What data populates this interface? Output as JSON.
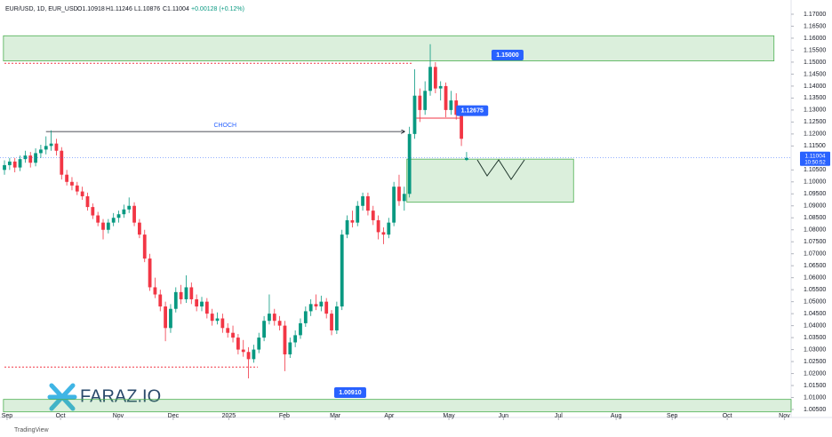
{
  "header": {
    "symbol": "EUR/USD, 1D, EUR_USD",
    "open": "O1.10918",
    "high": "H1.11246",
    "low": "L1.10876",
    "close": "C1.11004",
    "change": "+0.00128 (+0.12%)"
  },
  "logo": "FARAZ.IO",
  "footer": "TradingView",
  "chart_data": {
    "type": "candlestick",
    "colors": {
      "up": "#089981",
      "down": "#f23645"
    },
    "xlim": [
      -0.86,
      151.5
    ],
    "xticks": [
      {
        "value": 0.5,
        "label": "Sep"
      },
      {
        "value": 10.8,
        "label": "Oct"
      },
      {
        "value": 21.9,
        "label": "Nov"
      },
      {
        "value": 32.5,
        "label": "Dec"
      },
      {
        "value": 43.2,
        "label": "2025"
      },
      {
        "value": 53.9,
        "label": "Feb"
      },
      {
        "value": 63.7,
        "label": "Mar"
      },
      {
        "value": 74.1,
        "label": "Apr"
      },
      {
        "value": 85.6,
        "label": "May"
      },
      {
        "value": 96.1,
        "label": "Jun"
      },
      {
        "value": 106.7,
        "label": "Jul"
      },
      {
        "value": 117.8,
        "label": "Aug"
      },
      {
        "value": 128.6,
        "label": "Sep"
      },
      {
        "value": 139.2,
        "label": "Oct"
      },
      {
        "value": 150.2,
        "label": "Nov"
      }
    ],
    "ylim": [
      1.005,
      1.17
    ],
    "yticks": [
      {
        "value": 1.17,
        "label": "1.17000"
      },
      {
        "value": 1.165,
        "label": "1.16500"
      },
      {
        "value": 1.16,
        "label": "1.16000"
      },
      {
        "value": 1.155,
        "label": "1.15500"
      },
      {
        "value": 1.15,
        "label": "1.15000"
      },
      {
        "value": 1.145,
        "label": "1.14500"
      },
      {
        "value": 1.14,
        "label": "1.14000"
      },
      {
        "value": 1.135,
        "label": "1.13500"
      },
      {
        "value": 1.13,
        "label": "1.13000"
      },
      {
        "value": 1.125,
        "label": "1.12500"
      },
      {
        "value": 1.12,
        "label": "1.12000"
      },
      {
        "value": 1.115,
        "label": "1.11500"
      },
      {
        "value": 1.105,
        "label": "1.10500"
      },
      {
        "value": 1.1,
        "label": "1.10000"
      },
      {
        "value": 1.095,
        "label": "1.09500"
      },
      {
        "value": 1.09,
        "label": "1.09000"
      },
      {
        "value": 1.085,
        "label": "1.08500"
      },
      {
        "value": 1.08,
        "label": "1.08000"
      },
      {
        "value": 1.075,
        "label": "1.07500"
      },
      {
        "value": 1.07,
        "label": "1.07000"
      },
      {
        "value": 1.065,
        "label": "1.06500"
      },
      {
        "value": 1.06,
        "label": "1.06000"
      },
      {
        "value": 1.055,
        "label": "1.05500"
      },
      {
        "value": 1.05,
        "label": "1.05000"
      },
      {
        "value": 1.045,
        "label": "1.04500"
      },
      {
        "value": 1.04,
        "label": "1.04000"
      },
      {
        "value": 1.035,
        "label": "1.03500"
      },
      {
        "value": 1.03,
        "label": "1.03000"
      },
      {
        "value": 1.025,
        "label": "1.02500"
      },
      {
        "value": 1.02,
        "label": "1.02000"
      },
      {
        "value": 1.015,
        "label": "1.01500"
      },
      {
        "value": 1.01,
        "label": "1.01000"
      },
      {
        "value": 1.005,
        "label": "1.00500"
      }
    ],
    "last_price": {
      "value": 1.11004,
      "label": "1.11004",
      "time": "10:50:52",
      "color": "#2962ff"
    },
    "ohlc": [
      [
        1.105,
        1.109,
        1.103,
        1.107
      ],
      [
        1.107,
        1.11,
        1.105,
        1.1085
      ],
      [
        1.1085,
        1.11,
        1.104,
        1.106
      ],
      [
        1.106,
        1.111,
        1.1045,
        1.1095
      ],
      [
        1.1095,
        1.113,
        1.108,
        1.111
      ],
      [
        1.111,
        1.1125,
        1.106,
        1.108
      ],
      [
        1.108,
        1.114,
        1.1065,
        1.112
      ],
      [
        1.112,
        1.1155,
        1.11,
        1.1135
      ],
      [
        1.1135,
        1.119,
        1.1115,
        1.115
      ],
      [
        1.115,
        1.1215,
        1.113,
        1.116
      ],
      [
        1.116,
        1.118,
        1.111,
        1.113
      ],
      [
        1.113,
        1.1145,
        1.101,
        1.103
      ],
      [
        1.103,
        1.105,
        1.0985,
        1.1
      ],
      [
        1.1,
        1.102,
        1.0965,
        1.0985
      ],
      [
        1.0985,
        1.1,
        1.0945,
        1.096
      ],
      [
        1.096,
        1.098,
        1.0925,
        1.094
      ],
      [
        1.094,
        1.0955,
        1.088,
        1.0895
      ],
      [
        1.0895,
        1.091,
        1.0845,
        1.086
      ],
      [
        1.086,
        1.0875,
        1.0815,
        1.083
      ],
      [
        1.083,
        1.0845,
        1.076,
        1.08
      ],
      [
        1.08,
        1.0845,
        1.0785,
        1.083
      ],
      [
        1.083,
        1.087,
        1.0815,
        1.085
      ],
      [
        1.085,
        1.088,
        1.083,
        1.0865
      ],
      [
        1.0865,
        1.0905,
        1.085,
        1.0885
      ],
      [
        1.0885,
        1.0935,
        1.087,
        1.09
      ],
      [
        1.09,
        1.0915,
        1.0815,
        1.083
      ],
      [
        1.083,
        1.0845,
        1.0765,
        1.078
      ],
      [
        1.078,
        1.08,
        1.0665,
        1.068
      ],
      [
        1.068,
        1.07,
        1.0545,
        1.056
      ],
      [
        1.056,
        1.06,
        1.0515,
        1.053
      ],
      [
        1.053,
        1.055,
        1.046,
        1.048
      ],
      [
        1.048,
        1.05,
        1.0335,
        1.039
      ],
      [
        1.039,
        1.049,
        1.037,
        1.047
      ],
      [
        1.047,
        1.056,
        1.0455,
        1.054
      ],
      [
        1.054,
        1.057,
        1.049,
        1.051
      ],
      [
        1.051,
        1.061,
        1.0495,
        1.056
      ],
      [
        1.056,
        1.058,
        1.049,
        1.051
      ],
      [
        1.051,
        1.053,
        1.046,
        1.048
      ],
      [
        1.048,
        1.052,
        1.046,
        1.05
      ],
      [
        1.05,
        1.0515,
        1.043,
        1.045
      ],
      [
        1.045,
        1.047,
        1.04,
        1.042
      ],
      [
        1.042,
        1.0455,
        1.0405,
        1.043
      ],
      [
        1.043,
        1.045,
        1.037,
        1.039
      ],
      [
        1.039,
        1.041,
        1.035,
        1.037
      ],
      [
        1.037,
        1.04,
        1.033,
        1.035
      ],
      [
        1.035,
        1.0365,
        1.028,
        1.03
      ],
      [
        1.03,
        1.034,
        1.027,
        1.029
      ],
      [
        1.029,
        1.031,
        1.018,
        1.026
      ],
      [
        1.026,
        1.032,
        1.0245,
        1.03
      ],
      [
        1.03,
        1.037,
        1.0285,
        1.035
      ],
      [
        1.035,
        1.044,
        1.0335,
        1.042
      ],
      [
        1.042,
        1.053,
        1.0405,
        1.045
      ],
      [
        1.045,
        1.047,
        1.04,
        1.042
      ],
      [
        1.042,
        1.044,
        1.038,
        1.04
      ],
      [
        1.04,
        1.042,
        1.021,
        1.028
      ],
      [
        1.028,
        1.035,
        1.0265,
        1.033
      ],
      [
        1.033,
        1.038,
        1.031,
        1.036
      ],
      [
        1.036,
        1.043,
        1.0345,
        1.041
      ],
      [
        1.041,
        1.048,
        1.0395,
        1.046
      ],
      [
        1.046,
        1.051,
        1.044,
        1.049
      ],
      [
        1.049,
        1.053,
        1.0465,
        1.048
      ],
      [
        1.048,
        1.0525,
        1.046,
        1.05
      ],
      [
        1.05,
        1.0515,
        1.043,
        1.045
      ],
      [
        1.045,
        1.0465,
        1.036,
        1.038
      ],
      [
        1.038,
        1.05,
        1.0365,
        1.048
      ],
      [
        1.048,
        1.08,
        1.0465,
        1.078
      ],
      [
        1.078,
        1.086,
        1.0765,
        1.084
      ],
      [
        1.084,
        1.088,
        1.081,
        1.083
      ],
      [
        1.083,
        1.092,
        1.0815,
        1.09
      ],
      [
        1.09,
        1.0955,
        1.088,
        1.094
      ],
      [
        1.094,
        1.0955,
        1.086,
        1.088
      ],
      [
        1.088,
        1.09,
        1.082,
        1.084
      ],
      [
        1.084,
        1.086,
        1.076,
        1.079
      ],
      [
        1.079,
        1.081,
        1.074,
        1.078
      ],
      [
        1.078,
        1.085,
        1.0765,
        1.083
      ],
      [
        1.083,
        1.1,
        1.0815,
        1.098
      ],
      [
        1.098,
        1.103,
        1.09,
        1.092
      ],
      [
        1.092,
        1.098,
        1.088,
        1.095
      ],
      [
        1.095,
        1.123,
        1.0935,
        1.12
      ],
      [
        1.12,
        1.147,
        1.118,
        1.136
      ],
      [
        1.136,
        1.139,
        1.125,
        1.13
      ],
      [
        1.13,
        1.142,
        1.128,
        1.138
      ],
      [
        1.138,
        1.1575,
        1.136,
        1.148
      ],
      [
        1.148,
        1.15,
        1.137,
        1.139
      ],
      [
        1.139,
        1.142,
        1.134,
        1.14
      ],
      [
        1.14,
        1.1415,
        1.127,
        1.13
      ],
      [
        1.13,
        1.138,
        1.128,
        1.134
      ],
      [
        1.134,
        1.137,
        1.126,
        1.128
      ],
      [
        1.128,
        1.1295,
        1.115,
        1.118
      ],
      [
        1.10918,
        1.11246,
        1.10876,
        1.11004
      ]
    ],
    "zones": [
      {
        "low": 1.1505,
        "high": 1.161,
        "from": -0.2,
        "to": 148.2
      },
      {
        "low": 1.0915,
        "high": 1.1095,
        "from": 77.5,
        "to": 109.6
      },
      {
        "low": 1.004,
        "high": 1.0092,
        "from": -0.2,
        "to": 151.5
      }
    ],
    "dotted_levels": [
      {
        "value": 1.1495,
        "from": 0,
        "to": 78.5
      },
      {
        "value": 1.0227,
        "from": 0,
        "to": 48.8
      }
    ],
    "solid_levels": [
      {
        "value": 1.1266,
        "from": 79.3,
        "to": 88.1
      }
    ],
    "choch": {
      "label": "CHOCH",
      "value": 1.121,
      "from": 8,
      "to": 77
    },
    "price_labels": [
      {
        "value": 1.15,
        "label": "1.15000",
        "at": 93.8
      },
      {
        "value": 1.12675,
        "label": "1.12675",
        "at": 87
      },
      {
        "value": 1.0091,
        "label": "1.00910",
        "at": 63.5
      }
    ]
  }
}
